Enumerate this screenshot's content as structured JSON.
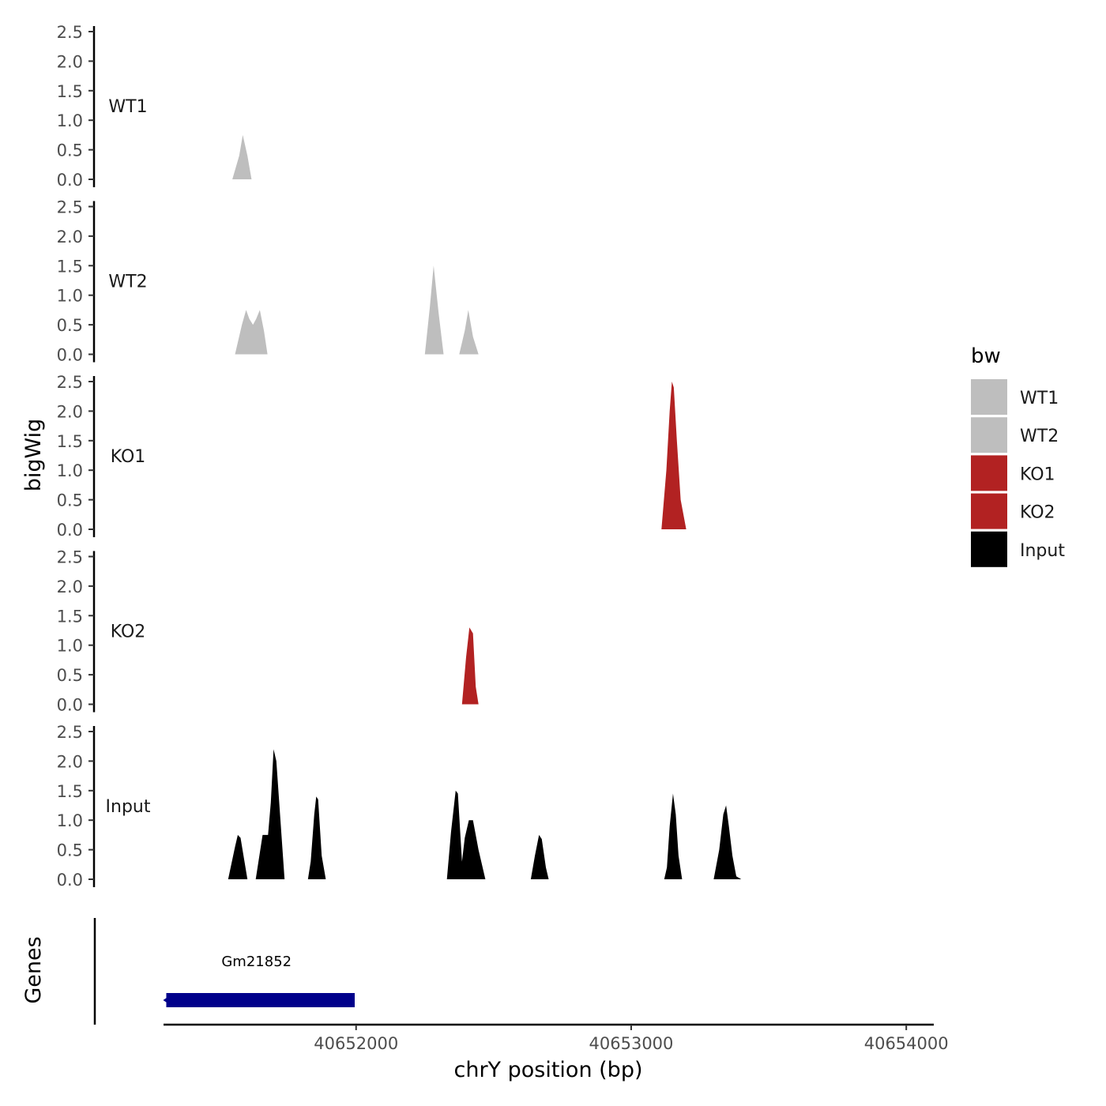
{
  "chart_data": {
    "type": "area",
    "title": "",
    "xlabel": "chrY position (bp)",
    "ylabel": "bigWig",
    "gene_track_label": "Genes",
    "xlim": [
      40651300,
      40654100
    ],
    "ylim": [
      0,
      2.5
    ],
    "x_ticks": [
      40652000,
      40653000,
      40654000
    ],
    "x_tick_labels": [
      "40652000",
      "40653000",
      "40654000"
    ],
    "y_ticks": [
      0.0,
      0.5,
      1.0,
      1.5,
      2.0,
      2.5
    ],
    "y_tick_labels": [
      "0.0",
      "0.5",
      "1.0",
      "1.5",
      "2.0",
      "2.5"
    ],
    "legend": {
      "title": "bw",
      "position": "right",
      "entries": [
        {
          "label": "WT1",
          "color": "#bebebe"
        },
        {
          "label": "WT2",
          "color": "#bebebe"
        },
        {
          "label": "KO1",
          "color": "#b22222"
        },
        {
          "label": "KO2",
          "color": "#b22222"
        },
        {
          "label": "Input",
          "color": "#000000"
        }
      ]
    },
    "series": [
      {
        "name": "WT1",
        "color": "#bebebe",
        "points": [
          [
            40651550,
            0
          ],
          [
            40651575,
            0.4
          ],
          [
            40651588,
            0.75
          ],
          [
            40651605,
            0.4
          ],
          [
            40651620,
            0
          ]
        ]
      },
      {
        "name": "WT2",
        "color": "#bebebe",
        "points": [
          [
            40651560,
            0
          ],
          [
            40651585,
            0.5
          ],
          [
            40651600,
            0.75
          ],
          [
            40651612,
            0.6
          ],
          [
            40651625,
            0.5
          ],
          [
            40651637,
            0.6
          ],
          [
            40651650,
            0.75
          ],
          [
            40651665,
            0.4
          ],
          [
            40651678,
            0
          ],
          [
            40652250,
            0
          ],
          [
            40652268,
            0.8
          ],
          [
            40652282,
            1.5
          ],
          [
            40652300,
            0.7
          ],
          [
            40652318,
            0
          ],
          [
            40652375,
            0
          ],
          [
            40652395,
            0.4
          ],
          [
            40652408,
            0.75
          ],
          [
            40652425,
            0.3
          ],
          [
            40652445,
            0
          ]
        ]
      },
      {
        "name": "KO1",
        "color": "#b22222",
        "points": [
          [
            40653110,
            0
          ],
          [
            40653128,
            1.0
          ],
          [
            40653140,
            2.0
          ],
          [
            40653148,
            2.5
          ],
          [
            40653155,
            2.4
          ],
          [
            40653166,
            1.5
          ],
          [
            40653180,
            0.5
          ],
          [
            40653200,
            0
          ]
        ]
      },
      {
        "name": "KO2",
        "color": "#b22222",
        "points": [
          [
            40652385,
            0
          ],
          [
            40652400,
            0.8
          ],
          [
            40652412,
            1.3
          ],
          [
            40652425,
            1.2
          ],
          [
            40652435,
            0.3
          ],
          [
            40652445,
            0
          ]
        ]
      },
      {
        "name": "Input",
        "color": "#000000",
        "points": [
          [
            40651535,
            0
          ],
          [
            40651560,
            0.55
          ],
          [
            40651570,
            0.75
          ],
          [
            40651580,
            0.7
          ],
          [
            40651605,
            0
          ],
          [
            40651635,
            0
          ],
          [
            40651660,
            0.75
          ],
          [
            40651680,
            0.75
          ],
          [
            40651690,
            1.3
          ],
          [
            40651700,
            2.2
          ],
          [
            40651710,
            2.0
          ],
          [
            40651725,
            1.0
          ],
          [
            40651740,
            0
          ],
          [
            40651825,
            0
          ],
          [
            40651835,
            0.3
          ],
          [
            40651848,
            1.1
          ],
          [
            40651855,
            1.4
          ],
          [
            40651862,
            1.35
          ],
          [
            40651875,
            0.4
          ],
          [
            40651890,
            0
          ],
          [
            40652330,
            0
          ],
          [
            40652345,
            0.8
          ],
          [
            40652362,
            1.5
          ],
          [
            40652370,
            1.45
          ],
          [
            40652385,
            0.3
          ],
          [
            40652395,
            0.7
          ],
          [
            40652410,
            1.0
          ],
          [
            40652425,
            1.0
          ],
          [
            40652445,
            0.5
          ],
          [
            40652470,
            0
          ],
          [
            40652635,
            0
          ],
          [
            40652650,
            0.4
          ],
          [
            40652665,
            0.75
          ],
          [
            40652675,
            0.68
          ],
          [
            40652690,
            0.2
          ],
          [
            40652700,
            0
          ],
          [
            40653120,
            0
          ],
          [
            40653130,
            0.2
          ],
          [
            40653140,
            0.9
          ],
          [
            40653152,
            1.45
          ],
          [
            40653162,
            1.1
          ],
          [
            40653172,
            0.4
          ],
          [
            40653185,
            0
          ],
          [
            40653300,
            0
          ],
          [
            40653320,
            0.5
          ],
          [
            40653335,
            1.1
          ],
          [
            40653345,
            1.25
          ],
          [
            40653355,
            0.9
          ],
          [
            40653368,
            0.4
          ],
          [
            40653382,
            0.05
          ],
          [
            40653400,
            0
          ]
        ]
      }
    ],
    "genes": [
      {
        "name": "Gm21852",
        "start": 40651310,
        "end": 40651995,
        "color": "#00008b"
      }
    ]
  }
}
